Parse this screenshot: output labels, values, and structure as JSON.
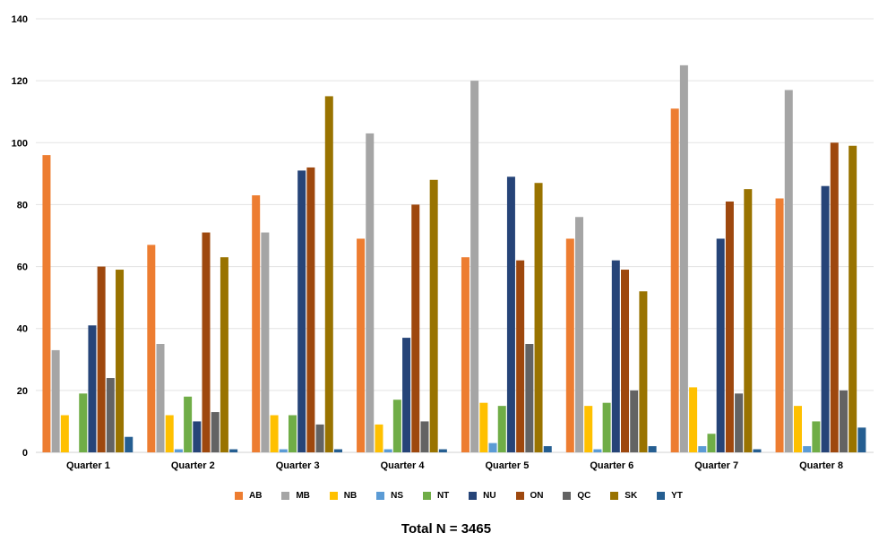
{
  "chart_data": {
    "type": "bar",
    "title": "",
    "subtitle": "Total N = 3465",
    "xlabel": "",
    "ylabel": "",
    "ylim": [
      0,
      140
    ],
    "yticks": [
      0,
      20,
      40,
      60,
      80,
      100,
      120,
      140
    ],
    "grid": true,
    "legend_position": "bottom",
    "categories": [
      "Quarter 1",
      "Quarter 2",
      "Quarter 3",
      "Quarter 4",
      "Quarter 5",
      "Quarter 6",
      "Quarter 7",
      "Quarter 8"
    ],
    "series": [
      {
        "name": "AB",
        "color": "#ED7D31",
        "values": [
          96,
          67,
          83,
          69,
          63,
          69,
          111,
          82
        ]
      },
      {
        "name": "MB",
        "color": "#A5A5A5",
        "values": [
          33,
          35,
          71,
          103,
          120,
          76,
          125,
          117
        ]
      },
      {
        "name": "NB",
        "color": "#FFC000",
        "values": [
          12,
          12,
          12,
          9,
          16,
          15,
          21,
          15
        ]
      },
      {
        "name": "NS",
        "color": "#5B9BD5",
        "values": [
          0,
          1,
          1,
          1,
          3,
          1,
          2,
          2
        ]
      },
      {
        "name": "NT",
        "color": "#70AD47",
        "values": [
          19,
          18,
          12,
          17,
          15,
          16,
          6,
          10
        ]
      },
      {
        "name": "NU",
        "color": "#264478",
        "values": [
          41,
          10,
          91,
          37,
          89,
          62,
          69,
          86
        ]
      },
      {
        "name": "ON",
        "color": "#9E480E",
        "values": [
          60,
          71,
          92,
          80,
          62,
          59,
          81,
          100
        ]
      },
      {
        "name": "QC",
        "color": "#636363",
        "values": [
          24,
          13,
          9,
          10,
          35,
          20,
          19,
          20
        ]
      },
      {
        "name": "SK",
        "color": "#997300",
        "values": [
          59,
          63,
          115,
          88,
          87,
          52,
          85,
          99
        ]
      },
      {
        "name": "YT",
        "color": "#255E91",
        "values": [
          5,
          1,
          1,
          1,
          2,
          2,
          1,
          8
        ]
      }
    ]
  },
  "footer": {
    "total_label": "Total N = 3465"
  }
}
